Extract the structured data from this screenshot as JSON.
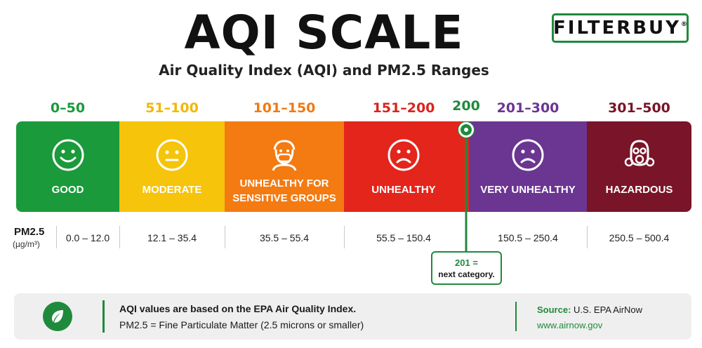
{
  "brand": {
    "logo_text": "FILTERBUY",
    "logo_mark": "®"
  },
  "header": {
    "title": "AQI SCALE",
    "subtitle": "Air Quality Index (AQI) and PM2.5 Ranges"
  },
  "categories": [
    {
      "range": "0–50",
      "label": "GOOD",
      "color": "#1a9a3a",
      "range_color": "#1a9a3a",
      "icon": "smiley-face-icon"
    },
    {
      "range": "51–100",
      "label": "MODERATE",
      "color": "#f5c40b",
      "range_color": "#f2b705",
      "icon": "neutral-face-icon"
    },
    {
      "range": "101–150",
      "label": "UNHEALTHY FOR SENSITIVE GROUPS",
      "label_line1": "UNHEALTHY FOR",
      "label_line2": "SENSITIVE GROUPS",
      "color": "#f47a12",
      "range_color": "#f07a12",
      "icon": "masked-person-icon"
    },
    {
      "range": "151–200",
      "label": "UNHEALTHY",
      "color": "#e3251c",
      "range_color": "#d9241b",
      "icon": "sad-face-icon"
    },
    {
      "range": "201–300",
      "label": "VERY UNHEALTHY",
      "color": "#6b3592",
      "range_color": "#6b3592",
      "icon": "sad-face-icon"
    },
    {
      "range": "301–500",
      "label": "HAZARDOUS",
      "color": "#7a1428",
      "range_color": "#7a1428",
      "icon": "gas-mask-icon"
    }
  ],
  "marker": {
    "value": "200",
    "callout_value": "201 =",
    "callout_text": "next category.",
    "color": "#1f8a3c"
  },
  "pm25": {
    "label": "PM2.5",
    "unit": "(µg/m³)",
    "values": [
      "0.0 – 12.0",
      "12.1 – 35.4",
      "35.5 – 55.4",
      "55.5 – 150.4",
      "150.5 – 250.4",
      "250.5 – 500.4"
    ]
  },
  "footer": {
    "icon": "leaf-icon",
    "line1": "AQI values are based on the EPA Air Quality Index.",
    "line2": "PM2.5 = Fine Particulate Matter (2.5 microns or smaller)",
    "source_label": "Source:",
    "source_value": "U.S. EPA AirNow",
    "url": "www.airnow.gov"
  }
}
